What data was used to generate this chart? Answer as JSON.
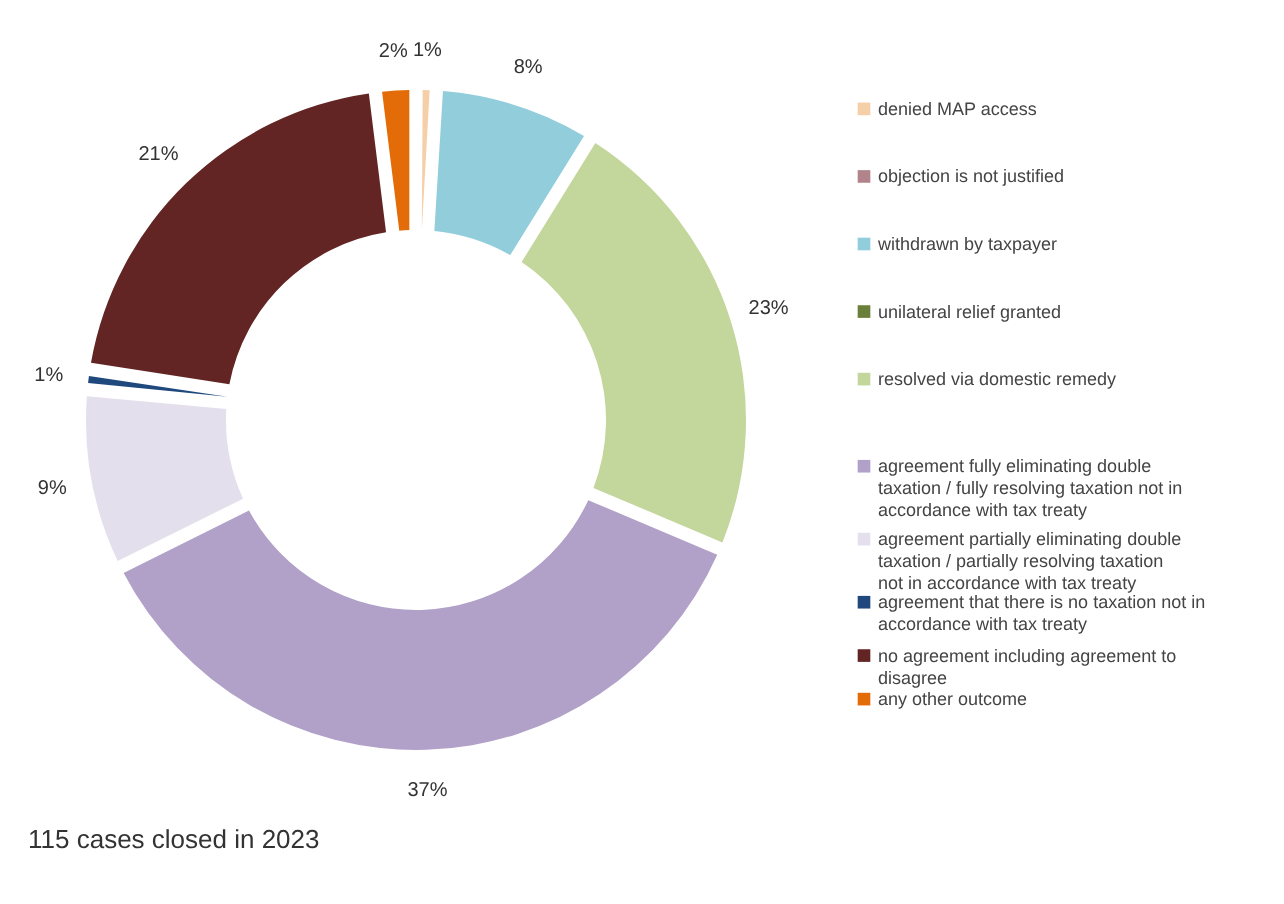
{
  "chart_data": {
    "type": "donut",
    "categories": [
      "denied MAP access",
      "objection is not justified",
      "withdrawn by taxpayer",
      "unilateral relief granted",
      "resolved via domestic remedy",
      "agreement fully eliminating double taxation / fully resolving taxation not in accordance with tax treaty",
      "agreement partially eliminating double taxation / partially resolving taxation not in accordance with tax treaty",
      "agreement that there is no taxation not in accordance with tax treaty",
      "no agreement including agreement to disagree",
      "any other outcome"
    ],
    "values": [
      1,
      0,
      8,
      0,
      23,
      37,
      9,
      1,
      21,
      2
    ],
    "value_labels": [
      "1%",
      null,
      "8%",
      null,
      "23%",
      "37%",
      "9%",
      "1%",
      "21%",
      "2%"
    ],
    "colors": [
      "#f5cfa8",
      "#b0848a",
      "#92cddc",
      "#6a7f3a",
      "#c3d69b",
      "#b1a0c7",
      "#e4dfec",
      "#1f497d",
      "#632523",
      "#e36c09"
    ],
    "legend": "right",
    "annotations": [
      "115 cases closed in 2023"
    ]
  }
}
